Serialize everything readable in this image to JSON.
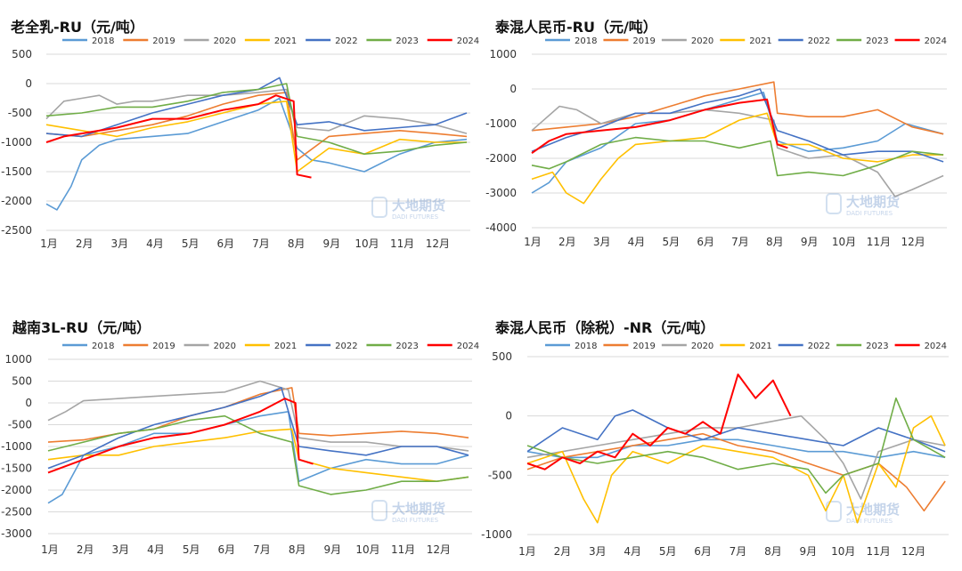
{
  "charts": [
    {
      "title": "老全乳-RU（元/吨）",
      "yticks": [
        500,
        0,
        -500,
        -1000,
        -1500,
        -2000,
        -2500
      ],
      "ylim": [
        -2500,
        500
      ]
    },
    {
      "title": "泰混人民币-RU（元/吨）",
      "yticks": [
        1000,
        0,
        -1000,
        -2000,
        -3000,
        -4000
      ],
      "ylim": [
        -4000,
        1000
      ]
    },
    {
      "title": "越南3L-RU（元/吨）",
      "yticks": [
        1000,
        500,
        0,
        -500,
        -1000,
        -1500,
        -2000,
        -2500,
        -3000
      ],
      "ylim": [
        -3000,
        1000
      ]
    },
    {
      "title": "泰混人民币（除税）-NR（元/吨）",
      "yticks": [
        500,
        0,
        -500,
        -1000
      ],
      "ylim": [
        -1000,
        500
      ]
    }
  ],
  "months": [
    "1月",
    "2月",
    "3月",
    "4月",
    "5月",
    "6月",
    "7月",
    "8月",
    "9月",
    "10月",
    "11月",
    "12月"
  ],
  "legend": [
    "2018",
    "2019",
    "2020",
    "2021",
    "2022",
    "2023",
    "2024"
  ],
  "colors": [
    "#5B9BD5",
    "#ED7D31",
    "#A5A5A5",
    "#FFC000",
    "#4472C4",
    "#70AD47",
    "#FF0000"
  ],
  "watermark": {
    "cn": "大地期货",
    "en": "DADI FUTURES"
  },
  "chart_data": [
    {
      "type": "line",
      "title": "老全乳-RU（元/吨）",
      "ylim": [
        -2500,
        500
      ],
      "x_categories": [
        "1月",
        "2月",
        "3月",
        "4月",
        "5月",
        "6月",
        "7月",
        "8月",
        "9月",
        "10月",
        "11月",
        "12月"
      ],
      "series": [
        {
          "name": "2018",
          "x": [
            1,
            1.3,
            1.7,
            2,
            2.5,
            3,
            4,
            5,
            6,
            7,
            7.6,
            8.1,
            8.5,
            9,
            10,
            11,
            12,
            12.9
          ],
          "y": [
            -2050,
            -2150,
            -1750,
            -1300,
            -1050,
            -950,
            -900,
            -850,
            -650,
            -450,
            -250,
            -1100,
            -1300,
            -1350,
            -1500,
            -1200,
            -1000,
            -950
          ]
        },
        {
          "name": "2019",
          "x": [
            1,
            2,
            3,
            4,
            5,
            6,
            7,
            7.8,
            8.1,
            9,
            10,
            11,
            12,
            12.9
          ],
          "y": [
            -850,
            -900,
            -800,
            -700,
            -550,
            -350,
            -200,
            -150,
            -1300,
            -900,
            -850,
            -800,
            -850,
            -900
          ]
        },
        {
          "name": "2020",
          "x": [
            1,
            1.5,
            2,
            2.5,
            3,
            3.5,
            4,
            5,
            6,
            7,
            7.8,
            8.1,
            9,
            10,
            11,
            12,
            12.9
          ],
          "y": [
            -600,
            -300,
            -250,
            -200,
            -350,
            -300,
            -300,
            -200,
            -200,
            -150,
            -100,
            -750,
            -800,
            -550,
            -600,
            -700,
            -850
          ]
        },
        {
          "name": "2021",
          "x": [
            1,
            2,
            3,
            4,
            5,
            6,
            7,
            7.8,
            8.1,
            9,
            10,
            11,
            12,
            12.9
          ],
          "y": [
            -700,
            -800,
            -900,
            -750,
            -650,
            -500,
            -350,
            -300,
            -1500,
            -1100,
            -1200,
            -950,
            -1000,
            -1000
          ]
        },
        {
          "name": "2022",
          "x": [
            1,
            2,
            3,
            4,
            5,
            6,
            7,
            7.6,
            8.1,
            9,
            10,
            11,
            12,
            12.9
          ],
          "y": [
            -850,
            -900,
            -700,
            -500,
            -350,
            -200,
            -100,
            100,
            -700,
            -650,
            -800,
            -750,
            -700,
            -500
          ]
        },
        {
          "name": "2023",
          "x": [
            1,
            2,
            3,
            4,
            5,
            6,
            7,
            7.8,
            8.1,
            9,
            10,
            11,
            12,
            12.9
          ],
          "y": [
            -550,
            -500,
            -400,
            -400,
            -300,
            -150,
            -100,
            0,
            -900,
            -1000,
            -1200,
            -1150,
            -1050,
            -1000
          ]
        },
        {
          "name": "2024",
          "x": [
            1,
            1.5,
            2,
            3,
            4,
            5,
            6,
            7,
            7.5,
            8,
            8.1,
            8.5
          ],
          "y": [
            -1000,
            -900,
            -850,
            -750,
            -600,
            -600,
            -450,
            -350,
            -200,
            -300,
            -1550,
            -1600
          ]
        }
      ]
    },
    {
      "type": "line",
      "title": "泰混人民币-RU（元/吨）",
      "ylim": [
        -4000,
        1000
      ],
      "x_categories": [
        "1月",
        "2月",
        "3月",
        "4月",
        "5月",
        "6月",
        "7月",
        "8月",
        "9月",
        "10月",
        "11月",
        "12月"
      ],
      "series": [
        {
          "name": "2018",
          "x": [
            1,
            1.5,
            2,
            3,
            4,
            5,
            6,
            7,
            7.7,
            8.1,
            9,
            10,
            11,
            11.8,
            12.9
          ],
          "y": [
            -3000,
            -2700,
            -2100,
            -1700,
            -1000,
            -900,
            -600,
            -300,
            -100,
            -1500,
            -1800,
            -1700,
            -1500,
            -1000,
            -1300
          ]
        },
        {
          "name": "2019",
          "x": [
            1,
            2,
            3,
            4,
            5,
            6,
            7,
            8,
            8.1,
            9,
            10,
            11,
            12,
            12.9
          ],
          "y": [
            -1200,
            -1100,
            -1000,
            -800,
            -500,
            -200,
            0,
            200,
            -700,
            -800,
            -800,
            -600,
            -1100,
            -1300
          ]
        },
        {
          "name": "2020",
          "x": [
            1,
            1.8,
            2.3,
            3,
            4,
            5,
            6,
            7,
            8,
            8.1,
            9,
            10,
            11,
            11.5,
            12,
            12.9
          ],
          "y": [
            -1200,
            -500,
            -600,
            -1000,
            -700,
            -700,
            -600,
            -700,
            -900,
            -1700,
            -2000,
            -1900,
            -2400,
            -3100,
            -2900,
            -2500
          ]
        },
        {
          "name": "2021",
          "x": [
            1,
            1.6,
            2,
            2.5,
            3,
            3.5,
            4,
            5,
            6,
            7,
            7.8,
            8.1,
            9,
            10,
            11,
            12,
            12.9
          ],
          "y": [
            -2600,
            -2400,
            -3000,
            -3300,
            -2600,
            -2000,
            -1600,
            -1500,
            -1400,
            -900,
            -700,
            -1600,
            -1600,
            -2000,
            -2100,
            -1900,
            -1900
          ]
        },
        {
          "name": "2022",
          "x": [
            1,
            2,
            3,
            4,
            5,
            6,
            7,
            7.6,
            8.1,
            9,
            10,
            11,
            12,
            12.9
          ],
          "y": [
            -1800,
            -1400,
            -1100,
            -700,
            -700,
            -400,
            -200,
            0,
            -1200,
            -1500,
            -1900,
            -1800,
            -1800,
            -2100
          ]
        },
        {
          "name": "2023",
          "x": [
            1,
            1.5,
            2,
            3,
            4,
            5,
            6,
            7,
            7.9,
            8.1,
            9,
            10,
            11,
            12,
            12.9
          ],
          "y": [
            -2200,
            -2300,
            -2100,
            -1600,
            -1400,
            -1500,
            -1500,
            -1700,
            -1500,
            -2500,
            -2400,
            -2500,
            -2200,
            -1800,
            -1900
          ]
        },
        {
          "name": "2024",
          "x": [
            1,
            1.5,
            2,
            3,
            4,
            5,
            6,
            7,
            7.8,
            8.1,
            8.4
          ],
          "y": [
            -1850,
            -1500,
            -1300,
            -1200,
            -1100,
            -900,
            -600,
            -400,
            -300,
            -1600,
            -1700
          ]
        }
      ]
    },
    {
      "type": "line",
      "title": "越南3L-RU（元/吨）",
      "ylim": [
        -3000,
        1000
      ],
      "x_categories": [
        "1月",
        "2月",
        "3月",
        "4月",
        "5月",
        "6月",
        "7月",
        "8月",
        "9月",
        "10月",
        "11月",
        "12月"
      ],
      "series": [
        {
          "name": "2018",
          "x": [
            1,
            1.4,
            2,
            3,
            4,
            5,
            6,
            7,
            7.8,
            8.1,
            9,
            10,
            11,
            12,
            12.9
          ],
          "y": [
            -2300,
            -2100,
            -1200,
            -1000,
            -700,
            -700,
            -500,
            -300,
            -200,
            -1800,
            -1500,
            -1300,
            -1400,
            -1400,
            -1200
          ]
        },
        {
          "name": "2019",
          "x": [
            1,
            2,
            3,
            4,
            5,
            6,
            7,
            7.9,
            8.1,
            9,
            10,
            11,
            12,
            12.9
          ],
          "y": [
            -900,
            -850,
            -700,
            -600,
            -300,
            -100,
            200,
            350,
            -700,
            -750,
            -700,
            -650,
            -700,
            -800
          ]
        },
        {
          "name": "2020",
          "x": [
            1,
            1.5,
            2,
            3,
            4,
            5,
            6,
            7,
            7.8,
            8.1,
            9,
            10,
            11,
            12,
            12.9
          ],
          "y": [
            -400,
            -200,
            50,
            100,
            150,
            200,
            250,
            500,
            300,
            -800,
            -900,
            -900,
            -1000,
            -1000,
            -1100
          ]
        },
        {
          "name": "2021",
          "x": [
            1,
            2,
            3,
            4,
            5,
            6,
            7,
            7.9,
            8.1,
            9,
            10,
            11,
            12,
            12.9
          ],
          "y": [
            -1300,
            -1200,
            -1200,
            -1000,
            -900,
            -800,
            -650,
            -600,
            -1300,
            -1500,
            -1600,
            -1700,
            -1800,
            -1700
          ]
        },
        {
          "name": "2022",
          "x": [
            1,
            2,
            3,
            4,
            5,
            6,
            7,
            7.6,
            8.1,
            9,
            10,
            11,
            12,
            12.9
          ],
          "y": [
            -1500,
            -1200,
            -800,
            -500,
            -300,
            -100,
            150,
            350,
            -1000,
            -1100,
            -1200,
            -1000,
            -1000,
            -1200
          ]
        },
        {
          "name": "2023",
          "x": [
            1,
            2,
            3,
            4,
            5,
            6,
            7,
            7.9,
            8.1,
            9,
            10,
            11,
            12,
            12.9
          ],
          "y": [
            -1100,
            -900,
            -700,
            -600,
            -400,
            -300,
            -700,
            -900,
            -1900,
            -2100,
            -2000,
            -1800,
            -1800,
            -1700
          ]
        },
        {
          "name": "2024",
          "x": [
            1,
            2,
            3,
            4,
            5,
            6,
            7,
            7.7,
            8,
            8.1,
            8.5
          ],
          "y": [
            -1600,
            -1300,
            -1000,
            -800,
            -700,
            -500,
            -200,
            100,
            0,
            -1300,
            -1400
          ]
        }
      ]
    },
    {
      "type": "line",
      "title": "泰混人民币（除税）-NR（元/吨）",
      "ylim": [
        -1000,
        500
      ],
      "x_categories": [
        "1月",
        "2月",
        "3月",
        "4月",
        "5月",
        "6月",
        "7月",
        "8月",
        "9月",
        "10月",
        "11月",
        "12月"
      ],
      "series": [
        {
          "name": "2018",
          "x": [
            1,
            2,
            3,
            4,
            5,
            6,
            7,
            8,
            9,
            10,
            11,
            12,
            12.9
          ],
          "y": [
            -300,
            -350,
            -350,
            -250,
            -250,
            -200,
            -200,
            -250,
            -300,
            -300,
            -350,
            -300,
            -350
          ]
        },
        {
          "name": "2019",
          "x": [
            1,
            2,
            3,
            4,
            5,
            6,
            7,
            8,
            9,
            10,
            11,
            11.8,
            12.3,
            12.9
          ],
          "y": [
            -450,
            -350,
            -300,
            -250,
            -200,
            -150,
            -250,
            -300,
            -400,
            -500,
            -400,
            -600,
            -800,
            -550
          ]
        },
        {
          "name": "2020",
          "x": [
            1,
            2,
            3,
            4,
            5,
            6,
            7,
            7.9,
            8.8,
            9.5,
            10,
            10.5,
            11,
            12,
            12.9
          ],
          "y": [
            -350,
            -300,
            -250,
            -200,
            -150,
            -100,
            -100,
            -50,
            0,
            -200,
            -400,
            -700,
            -300,
            -200,
            -250
          ]
        },
        {
          "name": "2021",
          "x": [
            1,
            2,
            2.6,
            3,
            3.4,
            4,
            5,
            6,
            7,
            8,
            9,
            9.5,
            10,
            10.4,
            11,
            11.5,
            12,
            12.5,
            12.9
          ],
          "y": [
            -400,
            -300,
            -700,
            -900,
            -500,
            -300,
            -400,
            -250,
            -300,
            -350,
            -500,
            -800,
            -500,
            -900,
            -400,
            -600,
            -100,
            0,
            -250
          ]
        },
        {
          "name": "2022",
          "x": [
            1,
            2,
            3,
            3.5,
            4,
            5,
            6,
            7,
            8,
            9,
            10,
            11,
            12,
            12.9
          ],
          "y": [
            -300,
            -100,
            -200,
            0,
            50,
            -100,
            -200,
            -100,
            -150,
            -200,
            -250,
            -100,
            -200,
            -300
          ]
        },
        {
          "name": "2023",
          "x": [
            1,
            2,
            3,
            4,
            5,
            6,
            7,
            8,
            9,
            9.5,
            10,
            11,
            11.5,
            12,
            12.9
          ],
          "y": [
            -250,
            -350,
            -400,
            -350,
            -300,
            -350,
            -450,
            -400,
            -450,
            -650,
            -500,
            -400,
            150,
            -200,
            -350
          ]
        },
        {
          "name": "2024",
          "x": [
            1,
            1.5,
            2,
            2.5,
            3,
            3.5,
            4,
            4.5,
            5,
            5.5,
            6,
            6.5,
            7,
            7.5,
            8,
            8.5
          ],
          "y": [
            -400,
            -450,
            -350,
            -400,
            -300,
            -350,
            -150,
            -250,
            -100,
            -150,
            -50,
            -150,
            350,
            150,
            300,
            0
          ]
        }
      ]
    }
  ]
}
